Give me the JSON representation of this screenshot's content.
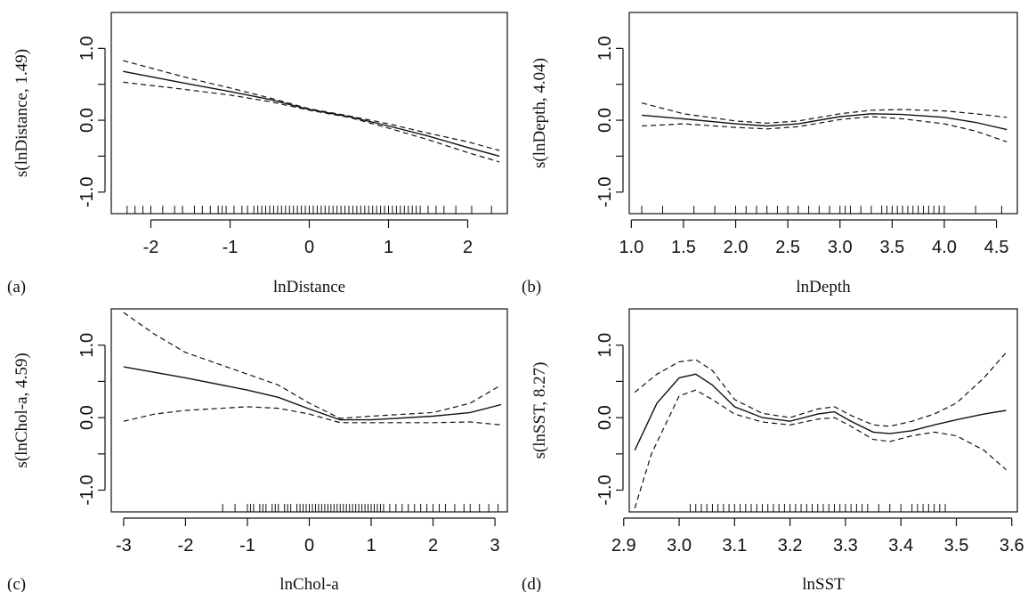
{
  "chart_data": [
    {
      "panel": "(a)",
      "type": "line",
      "xlabel": "lnDistance",
      "ylabel": "s(lnDistance, 1.49)",
      "xlim": [
        -2.5,
        2.5
      ],
      "ylim": [
        -1.3,
        1.5
      ],
      "xticks": [
        -2,
        -1,
        0,
        1,
        2
      ],
      "xtick_labels": [
        "-2",
        "-1",
        "0",
        "1",
        "2"
      ],
      "yticks": [
        -1.0,
        0.0,
        1.0
      ],
      "ytick_labels": [
        "-1.0",
        "0.0",
        "1.0"
      ],
      "series": [
        {
          "style": "solid",
          "x": [
            -2.35,
            -1.5,
            -1,
            -0.5,
            0,
            0.5,
            1,
            1.5,
            2,
            2.4
          ],
          "y": [
            0.68,
            0.5,
            0.4,
            0.29,
            0.15,
            0.05,
            -0.08,
            -0.22,
            -0.38,
            -0.5
          ]
        },
        {
          "style": "dashed",
          "x": [
            -2.35,
            -1.5,
            -1,
            -0.5,
            0,
            0.5,
            1,
            1.5,
            2,
            2.4
          ],
          "y": [
            0.83,
            0.58,
            0.45,
            0.31,
            0.16,
            0.06,
            -0.05,
            -0.18,
            -0.3,
            -0.42
          ]
        },
        {
          "style": "dashed",
          "x": [
            -2.35,
            -1.5,
            -1,
            -0.5,
            0,
            0.5,
            1,
            1.5,
            2,
            2.4
          ],
          "y": [
            0.53,
            0.42,
            0.35,
            0.26,
            0.14,
            0.04,
            -0.11,
            -0.27,
            -0.45,
            -0.58
          ]
        }
      ],
      "rug": [
        -2.3,
        -2.2,
        -2.1,
        -2.0,
        -1.85,
        -1.7,
        -1.6,
        -1.45,
        -1.35,
        -1.25,
        -1.15,
        -1.1,
        -1.05,
        -0.95,
        -0.85,
        -0.78,
        -0.7,
        -0.65,
        -0.6,
        -0.55,
        -0.5,
        -0.45,
        -0.4,
        -0.35,
        -0.3,
        -0.25,
        -0.2,
        -0.15,
        -0.1,
        -0.05,
        0,
        0.05,
        0.1,
        0.15,
        0.2,
        0.25,
        0.3,
        0.35,
        0.4,
        0.45,
        0.5,
        0.55,
        0.6,
        0.65,
        0.7,
        0.75,
        0.8,
        0.85,
        0.9,
        0.95,
        1.0,
        1.05,
        1.1,
        1.15,
        1.2,
        1.25,
        1.3,
        1.35,
        1.4,
        1.5,
        1.6,
        1.7,
        1.85,
        2.05,
        2.3
      ]
    },
    {
      "panel": "(b)",
      "type": "line",
      "xlabel": "lnDepth",
      "ylabel": "s(lnDepth, 4.04)",
      "xlim": [
        0.98,
        4.7
      ],
      "ylim": [
        -1.3,
        1.5
      ],
      "xticks": [
        1.0,
        1.5,
        2.0,
        2.5,
        3.0,
        3.5,
        4.0,
        4.5
      ],
      "xtick_labels": [
        "1.0",
        "1.5",
        "2.0",
        "2.5",
        "3.0",
        "3.5",
        "4.0",
        "4.5"
      ],
      "yticks": [
        -1.0,
        0.0,
        1.0
      ],
      "ytick_labels": [
        "-1.0",
        "0.0",
        "1.0"
      ],
      "series": [
        {
          "style": "solid",
          "x": [
            1.1,
            1.5,
            2.0,
            2.3,
            2.6,
            3.0,
            3.3,
            3.6,
            4.0,
            4.3,
            4.6
          ],
          "y": [
            0.07,
            0.02,
            -0.05,
            -0.08,
            -0.05,
            0.05,
            0.09,
            0.08,
            0.04,
            -0.03,
            -0.13
          ]
        },
        {
          "style": "dashed",
          "x": [
            1.1,
            1.5,
            2.0,
            2.3,
            2.6,
            3.0,
            3.3,
            3.6,
            4.0,
            4.3,
            4.6
          ],
          "y": [
            0.24,
            0.09,
            -0.01,
            -0.04,
            -0.01,
            0.09,
            0.14,
            0.15,
            0.13,
            0.09,
            0.04
          ]
        },
        {
          "style": "dashed",
          "x": [
            1.1,
            1.5,
            2.0,
            2.3,
            2.6,
            3.0,
            3.3,
            3.6,
            4.0,
            4.3,
            4.6
          ],
          "y": [
            -0.08,
            -0.05,
            -0.1,
            -0.12,
            -0.09,
            0.01,
            0.05,
            0.02,
            -0.05,
            -0.15,
            -0.3
          ]
        }
      ],
      "rug": [
        1.1,
        1.3,
        1.6,
        1.8,
        2.0,
        2.1,
        2.2,
        2.3,
        2.4,
        2.5,
        2.6,
        2.7,
        2.8,
        2.9,
        3.0,
        3.05,
        3.1,
        3.2,
        3.3,
        3.4,
        3.45,
        3.5,
        3.55,
        3.6,
        3.65,
        3.7,
        3.75,
        3.8,
        3.85,
        3.9,
        3.95,
        4.0,
        4.3,
        4.55
      ]
    },
    {
      "panel": "(c)",
      "type": "line",
      "xlabel": "lnChol-a",
      "ylabel": "s(lnChol-a, 4.59)",
      "xlim": [
        -3.2,
        3.2
      ],
      "ylim": [
        -1.3,
        1.5
      ],
      "xticks": [
        -3,
        -2,
        -1,
        0,
        1,
        2,
        3
      ],
      "xtick_labels": [
        "-3",
        "-2",
        "-1",
        "0",
        "1",
        "2",
        "3"
      ],
      "yticks": [
        -1.0,
        0.0,
        1.0
      ],
      "ytick_labels": [
        "-1.0",
        "0.0",
        "1.0"
      ],
      "series": [
        {
          "style": "solid",
          "x": [
            -3.0,
            -2.0,
            -1.0,
            -0.5,
            0,
            0.5,
            1.0,
            2.0,
            2.6,
            3.1
          ],
          "y": [
            0.7,
            0.55,
            0.38,
            0.28,
            0.12,
            -0.03,
            -0.03,
            0.02,
            0.07,
            0.18
          ]
        },
        {
          "style": "dashed",
          "x": [
            -3.0,
            -2.5,
            -2.0,
            -1.0,
            -0.5,
            0,
            0.5,
            1.0,
            2.0,
            2.6,
            3.1
          ],
          "y": [
            1.45,
            1.15,
            0.9,
            0.6,
            0.45,
            0.2,
            -0.01,
            0.02,
            0.07,
            0.2,
            0.45
          ]
        },
        {
          "style": "dashed",
          "x": [
            -3.0,
            -2.5,
            -2.0,
            -1.0,
            -0.5,
            0,
            0.5,
            1.0,
            2.0,
            2.6,
            3.1
          ],
          "y": [
            -0.05,
            0.05,
            0.1,
            0.15,
            0.13,
            0.05,
            -0.07,
            -0.07,
            -0.07,
            -0.06,
            -0.1
          ]
        }
      ],
      "rug": [
        -1.4,
        -1.2,
        -1.0,
        -0.95,
        -0.9,
        -0.8,
        -0.75,
        -0.7,
        -0.6,
        -0.55,
        -0.5,
        -0.4,
        -0.35,
        -0.3,
        -0.2,
        -0.15,
        -0.1,
        -0.05,
        0,
        0.05,
        0.1,
        0.15,
        0.2,
        0.25,
        0.3,
        0.35,
        0.4,
        0.45,
        0.5,
        0.55,
        0.6,
        0.65,
        0.7,
        0.75,
        0.8,
        0.85,
        0.9,
        0.95,
        1.0,
        1.05,
        1.1,
        1.15,
        1.2,
        1.3,
        1.4,
        1.5,
        1.6,
        1.7,
        1.8,
        1.9,
        2.0,
        2.1,
        2.2,
        2.35,
        2.5,
        2.6,
        2.75,
        2.9,
        3.05
      ]
    },
    {
      "panel": "(d)",
      "type": "line",
      "xlabel": "lnSST",
      "ylabel": "s(lnSST, 8.27)",
      "xlim": [
        2.91,
        3.61
      ],
      "ylim": [
        -1.3,
        1.5
      ],
      "xticks": [
        2.9,
        3.0,
        3.1,
        3.2,
        3.3,
        3.4,
        3.5,
        3.6
      ],
      "xtick_labels": [
        "2.9",
        "3.0",
        "3.1",
        "3.2",
        "3.3",
        "3.4",
        "3.5",
        "3.6"
      ],
      "yticks": [
        -1.0,
        0.0,
        1.0
      ],
      "ytick_labels": [
        "-1.0",
        "0.0",
        "1.0"
      ],
      "series": [
        {
          "style": "solid",
          "x": [
            2.92,
            2.96,
            3.0,
            3.03,
            3.06,
            3.1,
            3.15,
            3.2,
            3.25,
            3.28,
            3.31,
            3.35,
            3.38,
            3.42,
            3.46,
            3.5,
            3.55,
            3.59
          ],
          "y": [
            -0.45,
            0.2,
            0.55,
            0.6,
            0.45,
            0.15,
            0.0,
            -0.05,
            0.05,
            0.08,
            -0.05,
            -0.2,
            -0.22,
            -0.18,
            -0.1,
            -0.03,
            0.05,
            0.1
          ]
        },
        {
          "style": "dashed",
          "x": [
            2.92,
            2.96,
            3.0,
            3.03,
            3.06,
            3.1,
            3.15,
            3.2,
            3.25,
            3.28,
            3.31,
            3.35,
            3.38,
            3.42,
            3.46,
            3.5,
            3.55,
            3.59
          ],
          "y": [
            0.35,
            0.6,
            0.77,
            0.8,
            0.65,
            0.25,
            0.06,
            0.0,
            0.12,
            0.15,
            0.03,
            -0.1,
            -0.12,
            -0.05,
            0.05,
            0.2,
            0.55,
            0.9
          ]
        },
        {
          "style": "dashed",
          "x": [
            2.92,
            2.95,
            3.0,
            3.03,
            3.06,
            3.1,
            3.15,
            3.2,
            3.25,
            3.28,
            3.31,
            3.35,
            3.38,
            3.42,
            3.46,
            3.5,
            3.55,
            3.59
          ],
          "y": [
            -1.25,
            -0.5,
            0.3,
            0.38,
            0.25,
            0.05,
            -0.06,
            -0.1,
            -0.02,
            0.0,
            -0.12,
            -0.3,
            -0.33,
            -0.25,
            -0.2,
            -0.25,
            -0.45,
            -0.72
          ]
        }
      ],
      "rug": [
        3.02,
        3.03,
        3.04,
        3.05,
        3.06,
        3.07,
        3.08,
        3.09,
        3.1,
        3.11,
        3.12,
        3.13,
        3.14,
        3.15,
        3.16,
        3.17,
        3.18,
        3.19,
        3.2,
        3.21,
        3.22,
        3.23,
        3.24,
        3.25,
        3.26,
        3.27,
        3.28,
        3.29,
        3.3,
        3.31,
        3.32,
        3.33,
        3.34,
        3.36,
        3.38,
        3.4,
        3.42,
        3.43,
        3.44,
        3.45,
        3.46,
        3.47,
        3.48
      ]
    }
  ]
}
